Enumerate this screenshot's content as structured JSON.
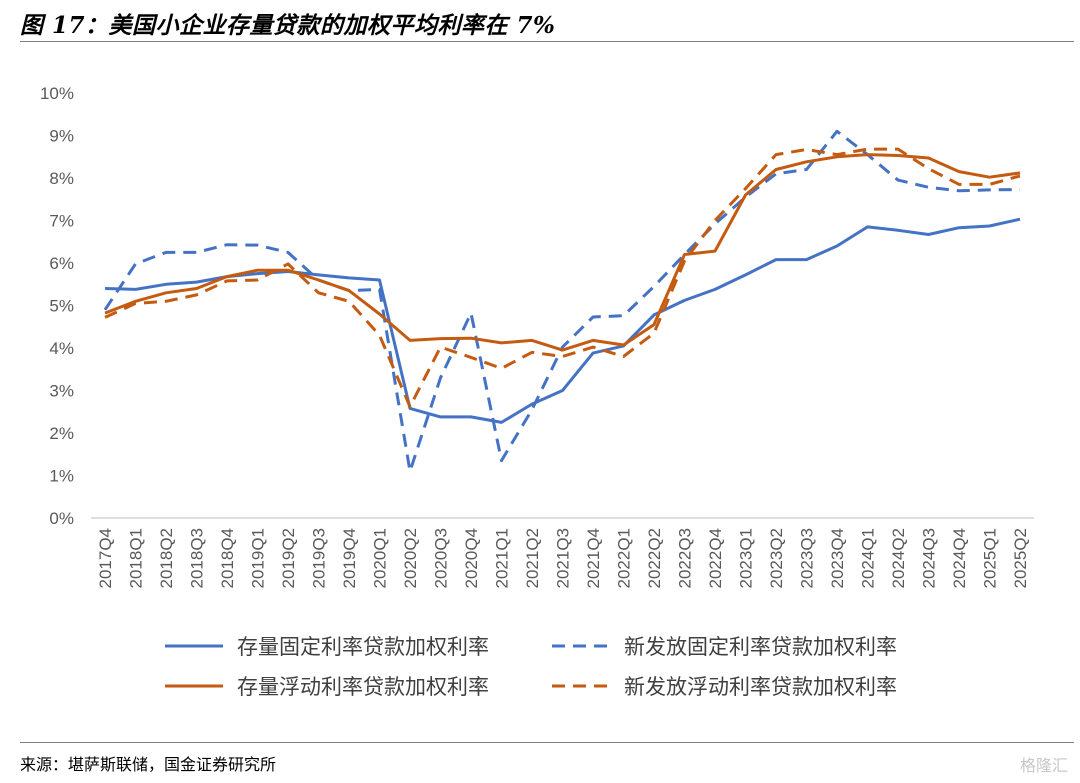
{
  "header": {
    "title": "图 17：美国小企业存量贷款的加权平均利率在 7%"
  },
  "footer": {
    "source": "来源：堪萨斯联储，国金证券研究所",
    "watermark": "格隆汇"
  },
  "chart_data": {
    "type": "line",
    "title": "",
    "xlabel": "",
    "ylabel": "",
    "ylim": [
      0,
      10
    ],
    "ytick_labels": [
      "0%",
      "1%",
      "2%",
      "3%",
      "4%",
      "5%",
      "6%",
      "7%",
      "8%",
      "9%",
      "10%"
    ],
    "grid": false,
    "legend_position": "bottom",
    "categories": [
      "2017Q4",
      "2018Q1",
      "2018Q2",
      "2018Q3",
      "2018Q4",
      "2019Q1",
      "2019Q2",
      "2019Q3",
      "2019Q4",
      "2020Q1",
      "2020Q2",
      "2020Q3",
      "2020Q4",
      "2021Q1",
      "2021Q2",
      "2021Q3",
      "2021Q4",
      "2022Q1",
      "2022Q2",
      "2022Q3",
      "2022Q4",
      "2023Q1",
      "2023Q2",
      "2023Q3",
      "2023Q4",
      "2024Q1",
      "2024Q2",
      "2024Q3",
      "2024Q4",
      "2025Q1",
      "2025Q2"
    ],
    "series": [
      {
        "name": "存量固定利率贷款加权利率",
        "color": "#4472C4",
        "dash": false,
        "values": [
          5.4,
          5.38,
          5.5,
          5.55,
          5.68,
          5.75,
          5.8,
          5.72,
          5.65,
          5.6,
          2.58,
          2.38,
          2.38,
          2.25,
          2.68,
          3.0,
          3.88,
          4.05,
          4.78,
          5.12,
          5.38,
          5.72,
          6.08,
          6.08,
          6.4,
          6.85,
          6.77,
          6.67,
          6.83,
          6.87,
          7.03
        ]
      },
      {
        "name": "新发放固定利率贷款加权利率",
        "color": "#4472C4",
        "dash": true,
        "values": [
          4.9,
          5.98,
          6.25,
          6.25,
          6.43,
          6.42,
          6.25,
          5.6,
          5.35,
          5.38,
          1.1,
          3.3,
          4.82,
          1.35,
          2.55,
          4.02,
          4.73,
          4.76,
          5.45,
          6.2,
          6.92,
          7.55,
          8.1,
          8.2,
          9.1,
          8.55,
          7.95,
          7.78,
          7.7,
          7.72,
          7.73
        ]
      },
      {
        "name": "存量浮动利率贷款加权利率",
        "color": "#C55A11",
        "dash": false,
        "values": [
          4.82,
          5.1,
          5.3,
          5.4,
          5.68,
          5.83,
          5.83,
          5.6,
          5.35,
          4.8,
          4.18,
          4.22,
          4.23,
          4.12,
          4.18,
          3.95,
          4.18,
          4.07,
          4.55,
          6.2,
          6.28,
          7.6,
          8.2,
          8.38,
          8.5,
          8.55,
          8.53,
          8.47,
          8.15,
          8.02,
          8.12
        ]
      },
      {
        "name": "新发放浮动利率贷款加权利率",
        "color": "#C55A11",
        "dash": true,
        "values": [
          4.72,
          5.05,
          5.1,
          5.25,
          5.58,
          5.6,
          5.98,
          5.3,
          5.1,
          4.3,
          2.62,
          4.02,
          3.78,
          3.52,
          3.9,
          3.8,
          4.02,
          3.8,
          4.35,
          6.05,
          7.0,
          7.75,
          8.55,
          8.67,
          8.55,
          8.68,
          8.68,
          8.22,
          7.85,
          7.85,
          8.05
        ]
      }
    ]
  }
}
